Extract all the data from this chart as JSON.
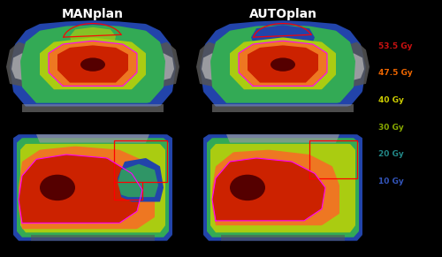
{
  "background_color": "#000000",
  "title_left": "MANplan",
  "title_right": "AUTOplan",
  "title_color": "#ffffff",
  "title_fontsize": 10,
  "legend_entries": [
    {
      "label": "53.5 Gy",
      "color": "#cc1111"
    },
    {
      "label": "47.5 Gy",
      "color": "#ee6600"
    },
    {
      "label": "40 Gy",
      "color": "#cccc00"
    },
    {
      "label": "30 Gy",
      "color": "#88aa00"
    },
    {
      "label": "20 Gy",
      "color": "#228888"
    },
    {
      "label": "10 Gy",
      "color": "#3355bb"
    }
  ],
  "legend_fontsize": 6.5,
  "dose_colors": {
    "bg": "#000000",
    "d10": "#2244aa",
    "d20": "#117799",
    "d30": "#33aa55",
    "d40": "#aacc11",
    "d47": "#ee7722",
    "d53": "#cc2200",
    "dark": "#550000",
    "lgray": "#999999",
    "dgray": "#555555",
    "wgray": "#bbbbbb",
    "blue_oar": "#4477cc"
  }
}
